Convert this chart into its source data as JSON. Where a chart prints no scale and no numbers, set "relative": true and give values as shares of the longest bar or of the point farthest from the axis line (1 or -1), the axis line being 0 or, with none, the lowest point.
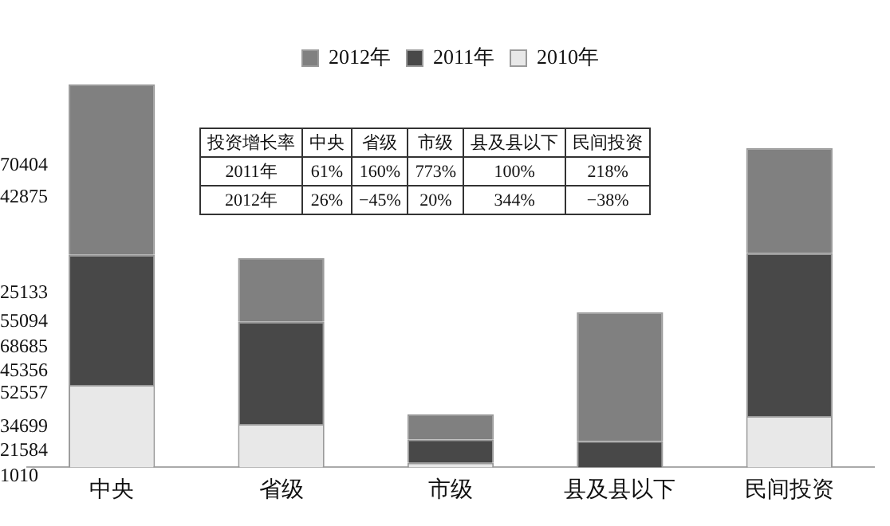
{
  "chart_data": {
    "type": "bar",
    "stacked": true,
    "relative": true,
    "legend": "top",
    "grid": false,
    "categories": [
      "中央",
      "省级",
      "市级",
      "县及县以下",
      "民间投资"
    ],
    "series": [
      {
        "name": "2010年",
        "color": "#e8e8e8",
        "values": [
          0.215,
          0.113,
          0.012,
          0,
          0.134
        ]
      },
      {
        "name": "2011年",
        "color": "#484848",
        "values": [
          0.34,
          0.267,
          0.061,
          0.069,
          0.425
        ]
      },
      {
        "name": "2012年",
        "color": "#808080",
        "values": [
          0.445,
          0.166,
          0.065,
          0.336,
          0.275
        ]
      }
    ],
    "annotations": [
      "70404",
      "42875",
      "25133",
      "55094",
      "68685",
      "45356",
      "52557",
      "34699",
      "21584",
      "1010",
      "投资增长率",
      "中央",
      "省级",
      "市级",
      "县及县以下",
      "民间投资",
      "2011年",
      "61%",
      "160%",
      "773%",
      "100%",
      "218%",
      "2012年",
      "26%",
      "−45%",
      "20%",
      "344%",
      "−38%"
    ]
  }
}
